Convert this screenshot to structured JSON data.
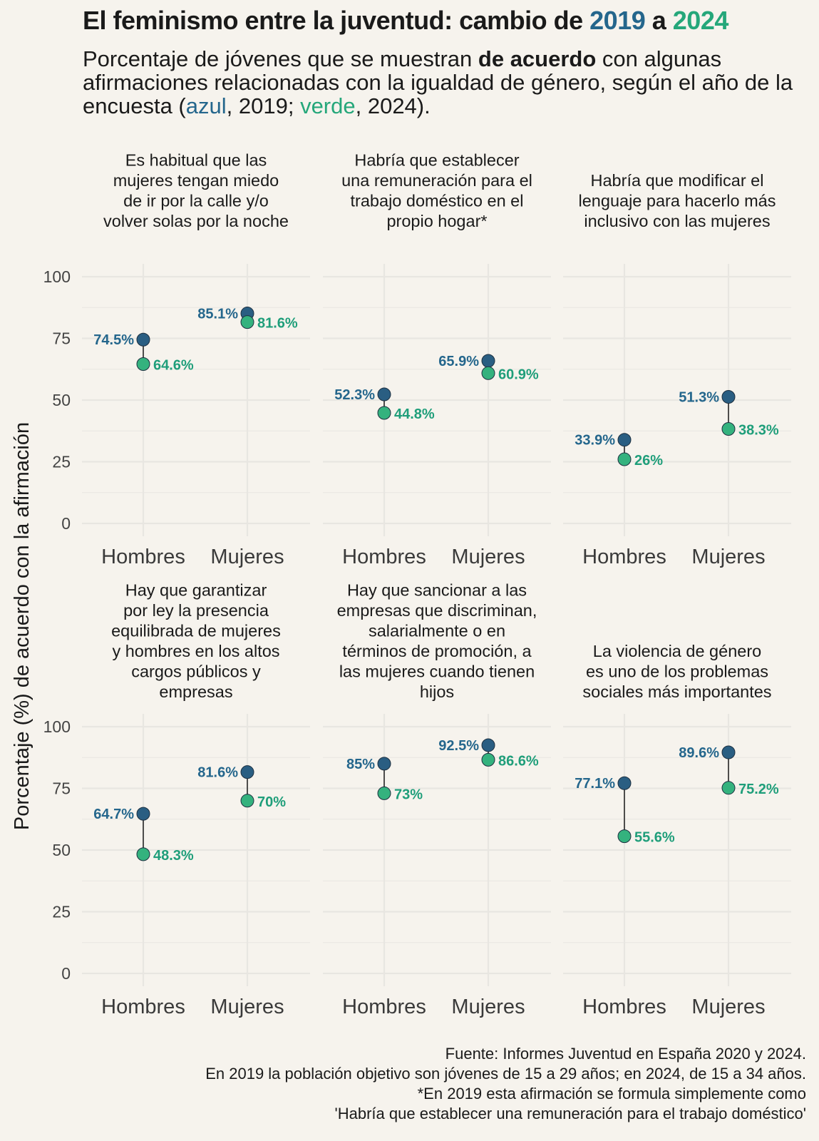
{
  "title": {
    "prefix": "El feminismo entre la juventud: cambio de ",
    "year1": "2019",
    "connector": " a ",
    "year2": "2024"
  },
  "subtitle": {
    "part1": "Porcentaje de jóvenes que se muestran ",
    "bold": "de acuerdo",
    "part2": " con algunas afirmaciones relacionadas con la igualdad de género, según el año de la encuesta (",
    "azul": "azul",
    "part3": ", 2019; ",
    "verde": "verde",
    "part4": ", 2024)."
  },
  "colors": {
    "y2019": "#2a5e82",
    "y2019_label": "#24668c",
    "y2024": "#34b27e",
    "y2024_label": "#1f9e7a",
    "background": "#f6f3ed",
    "grid": "#e8e6e1"
  },
  "footer": [
    "Fuente: Informes Juventud en España 2020 y 2024.",
    "En 2019 la población objetivo son jóvenes de 15 a 29 años; en 2024, de 15 a 34 años.",
    "*En 2019 esta afirmación se formula simplemente como",
    "'Habría que establecer una remuneración para el trabajo doméstico'"
  ],
  "chart_data": {
    "type": "dumbbell",
    "ylabel": "Porcentaje (%) de acuerdo con la afirmación",
    "ylim": [
      0,
      100
    ],
    "yticks": [
      0,
      25,
      50,
      75,
      100
    ],
    "categories": [
      "Hombres",
      "Mujeres"
    ],
    "series_names": [
      "2019",
      "2024"
    ],
    "panels": [
      {
        "title": [
          "Es habitual que las",
          "mujeres tengan miedo",
          "de ir por la calle y/o",
          "volver solas por la noche"
        ],
        "y2019": [
          74.5,
          85.1
        ],
        "y2024": [
          64.6,
          81.6
        ],
        "labels2019": [
          "74.5%",
          "85.1%"
        ],
        "labels2024": [
          "64.6%",
          "81.6%"
        ]
      },
      {
        "title": [
          "Habría que establecer",
          "una remuneración para el",
          "trabajo doméstico en el",
          "propio hogar*"
        ],
        "y2019": [
          52.3,
          65.9
        ],
        "y2024": [
          44.8,
          60.9
        ],
        "labels2019": [
          "52.3%",
          "65.9%"
        ],
        "labels2024": [
          "44.8%",
          "60.9%"
        ]
      },
      {
        "title": [
          "Habría que modificar el",
          "lenguaje para hacerlo más",
          "inclusivo con las mujeres"
        ],
        "y2019": [
          33.9,
          51.3
        ],
        "y2024": [
          26,
          38.3
        ],
        "labels2019": [
          "33.9%",
          "51.3%"
        ],
        "labels2024": [
          "26%",
          "38.3%"
        ]
      },
      {
        "title": [
          "Hay que garantizar",
          "por ley la presencia",
          "equilibrada de mujeres",
          "y hombres en los altos",
          "cargos públicos y",
          "empresas"
        ],
        "y2019": [
          64.7,
          81.6
        ],
        "y2024": [
          48.3,
          70
        ],
        "labels2019": [
          "64.7%",
          "81.6%"
        ],
        "labels2024": [
          "48.3%",
          "70%"
        ]
      },
      {
        "title": [
          "Hay que sancionar a las",
          "empresas que discriminan,",
          "salarialmente o en",
          "términos de promoción, a",
          "las mujeres cuando tienen",
          "hijos"
        ],
        "y2019": [
          85,
          92.5
        ],
        "y2024": [
          73,
          86.6
        ],
        "labels2019": [
          "85%",
          "92.5%"
        ],
        "labels2024": [
          "73%",
          "86.6%"
        ]
      },
      {
        "title": [
          "La violencia de género",
          "es uno de los problemas",
          "sociales más importantes"
        ],
        "y2019": [
          77.1,
          89.6
        ],
        "y2024": [
          55.6,
          75.2
        ],
        "labels2019": [
          "77.1%",
          "89.6%"
        ],
        "labels2024": [
          "55.6%",
          "75.2%"
        ]
      }
    ]
  }
}
